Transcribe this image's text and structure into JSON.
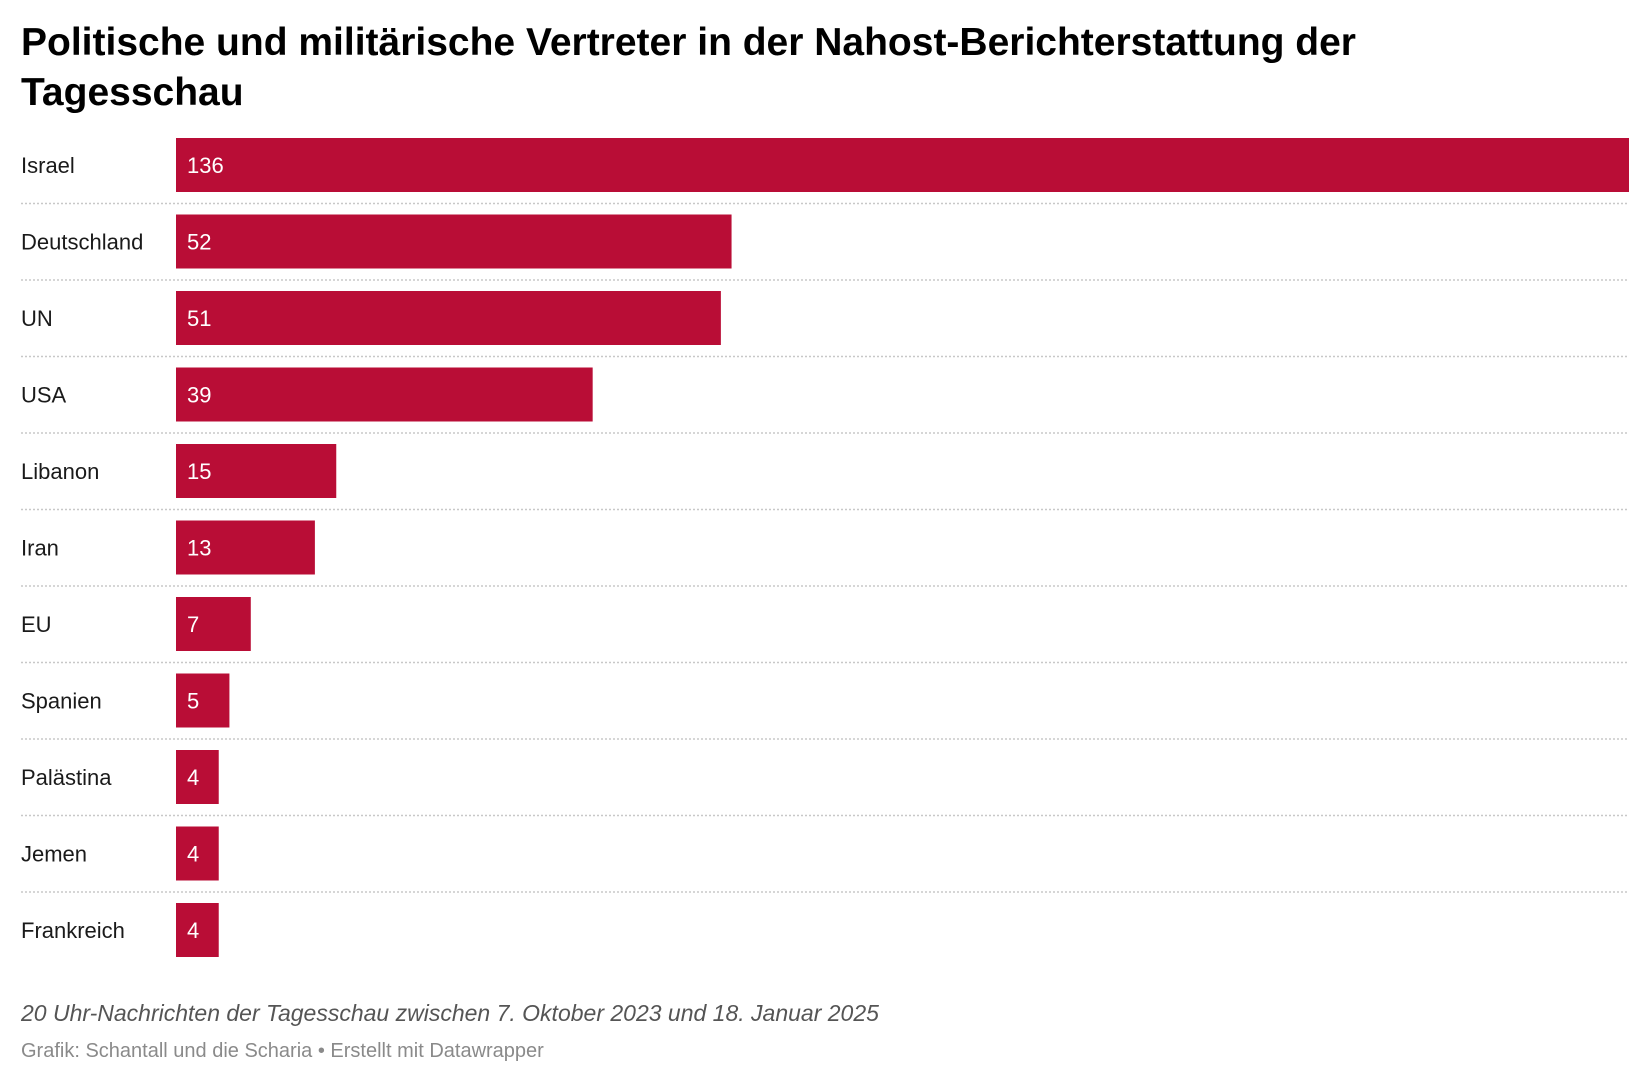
{
  "title": "Politische und militärische Vertreter in der Nahost-Berichterstattung der Tagesschau",
  "description": "20 Uhr-Nachrichten der Tagesschau zwischen 7. Oktober 2023 und 18. Januar 2025",
  "footer": {
    "credit": "Grafik: Schantall und die Scharia",
    "separator": "•",
    "tool": "Erstellt mit Datawrapper"
  },
  "colors": {
    "bar": "#b90d36",
    "separator_line": "#c8c8c8"
  },
  "chart_data": {
    "type": "bar",
    "orientation": "horizontal",
    "categories": [
      "Israel",
      "Deutschland",
      "UN",
      "USA",
      "Libanon",
      "Iran",
      "EU",
      "Spanien",
      "Palästina",
      "Jemen",
      "Frankreich"
    ],
    "values": [
      136,
      52,
      51,
      39,
      15,
      13,
      7,
      5,
      4,
      4,
      4
    ],
    "xlim": [
      0,
      136
    ],
    "value_labels": "inside-bar",
    "grid": false,
    "legend": false
  }
}
